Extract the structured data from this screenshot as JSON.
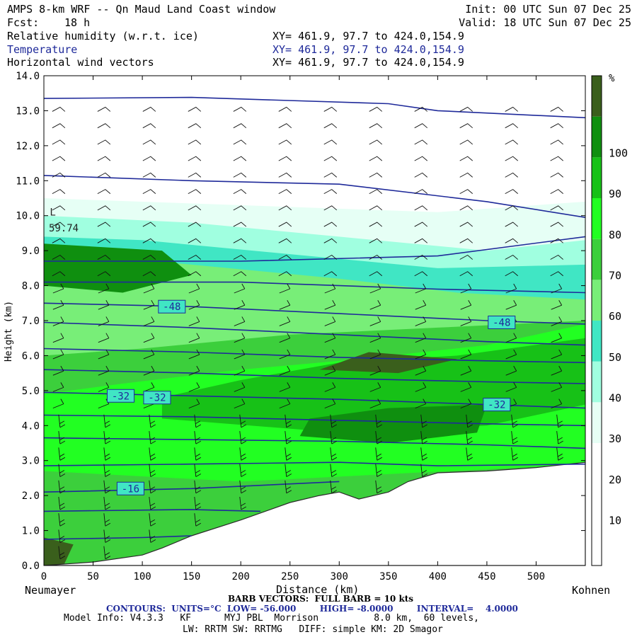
{
  "header": {
    "title": "AMPS 8-km WRF -- Qn Maud Land Coast window",
    "init": "Init: 00 UTC Sun 07 Dec 25",
    "fcst_label": "Fcst:",
    "fcst_value": "18 h",
    "valid": "Valid: 18 UTC Sun 07 Dec 25",
    "fields": [
      {
        "name": "Relative humidity (w.r.t. ice)",
        "xy": "XY= 461.9, 97.7 to 424.0,154.9",
        "color": "#000000"
      },
      {
        "name": "Temperature",
        "xy": "XY= 461.9, 97.7 to 424.0,154.9",
        "color": "#1f2a9a"
      },
      {
        "name": "Horizontal wind vectors",
        "xy": "XY= 461.9, 97.7 to 424.0,154.9",
        "color": "#000000"
      }
    ]
  },
  "axes": {
    "ylabel": "Height (km)",
    "xlabel": "Distance (km)",
    "left_station": "Neumayer",
    "right_station": "Kohnen",
    "yticks": [
      "0.0",
      "1.0",
      "2.0",
      "3.0",
      "4.0",
      "5.0",
      "6.0",
      "7.0",
      "8.0",
      "9.0",
      "10.0",
      "11.0",
      "12.0",
      "13.0",
      "14.0"
    ],
    "xticks": [
      "0",
      "50",
      "100",
      "150",
      "200",
      "250",
      "300",
      "350",
      "400",
      "450",
      "500"
    ]
  },
  "colorbar": {
    "unit": "%",
    "labels": [
      "10",
      "20",
      "30",
      "40",
      "50",
      "60",
      "70",
      "80",
      "90",
      "100"
    ],
    "colors": [
      "#ffffff",
      "#ffffff",
      "#ffffff",
      "#e6fff5",
      "#a0ffe0",
      "#40e6c4",
      "#78ee78",
      "#3ccf3c",
      "#22ff22",
      "#17c117",
      "#0f8f0f",
      "#3a5f1c"
    ]
  },
  "annotations": {
    "max_label": "L",
    "max_value": "59.74",
    "contour_labels": [
      "-48",
      "-48",
      "-32",
      "-32",
      "-32",
      "-16"
    ]
  },
  "footer": {
    "barb": "BARB VECTORS:  FULL BARB = 10 kts",
    "contours": "CONTOURS:  UNITS=°C  LOW= -56.000        HIGH= -8.0000        INTERVAL=    4.0000",
    "model1": "Model Info: V4.3.3   KF      MYJ PBL  Morrison          8.0 km,  60 levels,",
    "model2": "LW: RRTM SW: RRTMG   DIFF: simple KM: 2D Smagor"
  },
  "chart_data": {
    "type": "heatmap",
    "title": "AMPS 8-km WRF -- Qn Maud Land Coast window",
    "xlabel": "Distance (km)",
    "ylabel": "Height (km)",
    "xlim": [
      0,
      550
    ],
    "ylim": [
      0,
      14
    ],
    "fill_variable": "Relative humidity (w.r.t. ice)",
    "fill_unit": "%",
    "fill_levels": [
      10,
      20,
      30,
      40,
      50,
      60,
      70,
      80,
      90,
      100
    ],
    "contour_variable": "Temperature",
    "contour_unit": "°C",
    "contour_low": -56.0,
    "contour_high": -8.0,
    "contour_interval": 4.0,
    "vectors": "Horizontal wind vectors",
    "barb_note": "FULL BARB = 10 kts",
    "terrain_km": [
      [
        0,
        0.0
      ],
      [
        50,
        0.1
      ],
      [
        100,
        0.3
      ],
      [
        120,
        0.5
      ],
      [
        150,
        0.85
      ],
      [
        200,
        1.3
      ],
      [
        250,
        1.8
      ],
      [
        280,
        2.0
      ],
      [
        300,
        2.1
      ],
      [
        320,
        1.9
      ],
      [
        350,
        2.1
      ],
      [
        370,
        2.4
      ],
      [
        400,
        2.65
      ],
      [
        450,
        2.7
      ],
      [
        500,
        2.8
      ],
      [
        550,
        2.95
      ]
    ],
    "isotherms": [
      {
        "label": "-16",
        "points": [
          [
            0,
            2.1
          ],
          [
            150,
            2.2
          ],
          [
            300,
            2.4
          ]
        ]
      },
      {
        "label": "-32",
        "points": [
          [
            0,
            4.95
          ],
          [
            150,
            4.85
          ],
          [
            300,
            4.75
          ],
          [
            450,
            4.6
          ],
          [
            550,
            4.5
          ]
        ]
      },
      {
        "label": "-48",
        "points": [
          [
            0,
            7.5
          ],
          [
            150,
            7.4
          ],
          [
            300,
            7.2
          ],
          [
            450,
            7.0
          ],
          [
            550,
            6.9
          ]
        ]
      }
    ],
    "humidity_max": 59.74
  }
}
